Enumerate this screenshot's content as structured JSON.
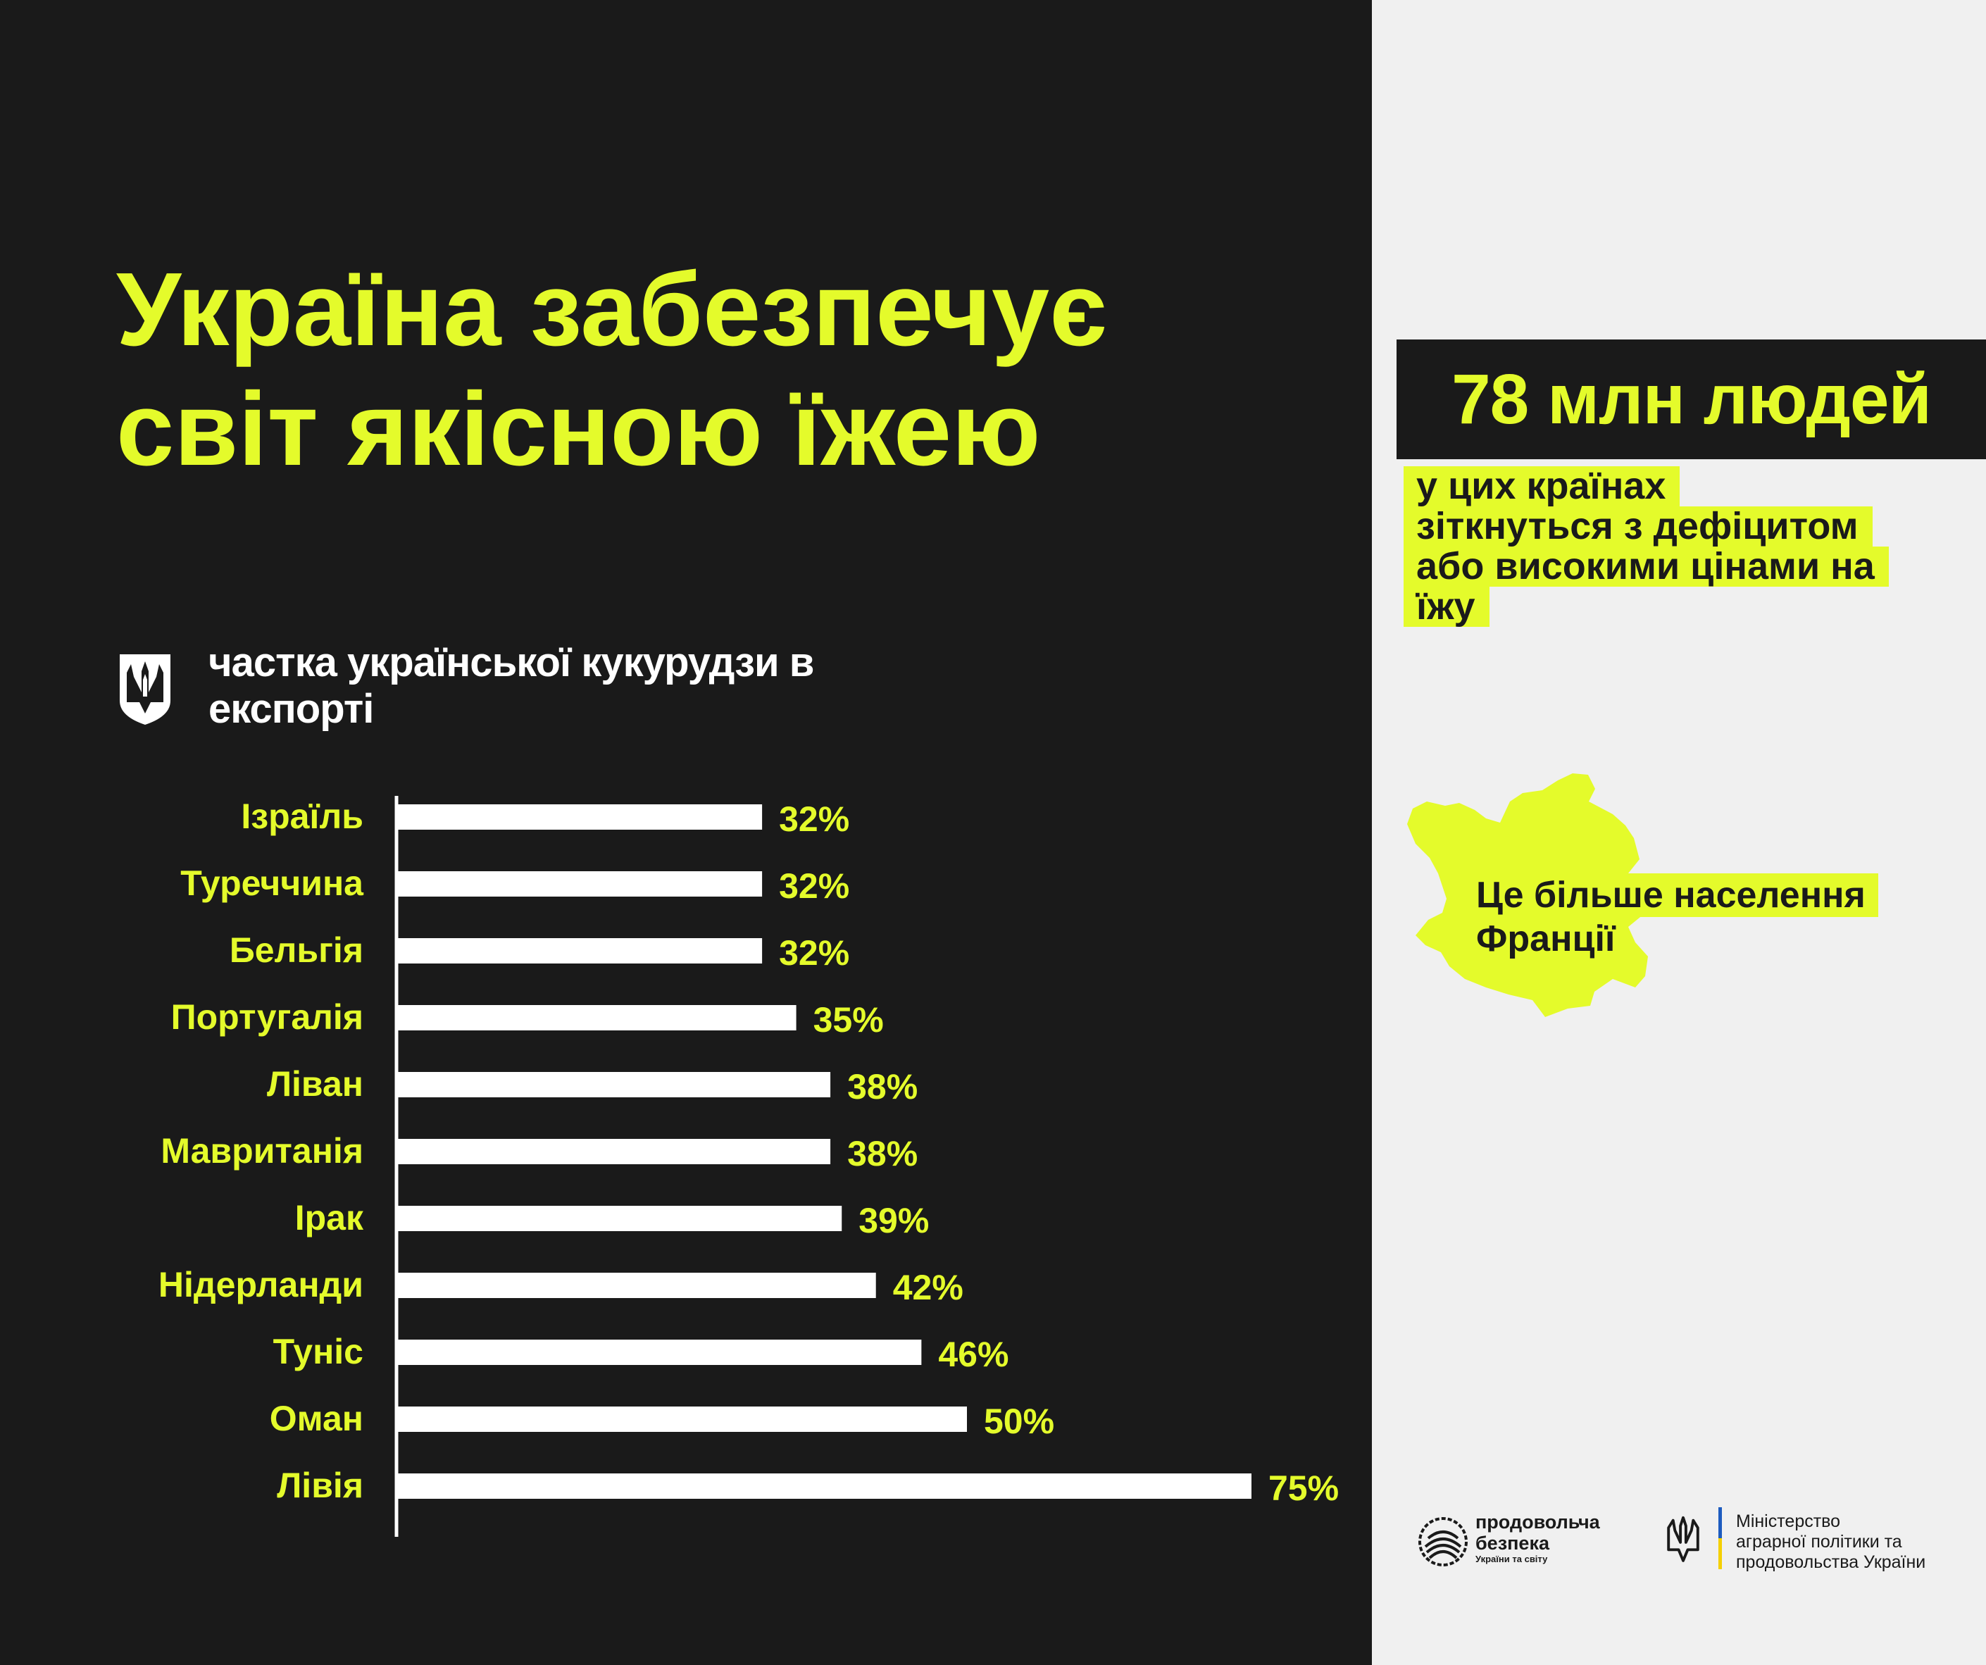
{
  "headline": {
    "line1": "Україна забезпечує",
    "line2": "світ якісною їжею"
  },
  "chart_subtitle": {
    "line1": "частка української кукурудзи в",
    "line2": "експорті"
  },
  "chart_data": {
    "type": "bar",
    "orientation": "horizontal",
    "categories": [
      "Ізраїль",
      "Туреччина",
      "Бельгія",
      "Португалія",
      "Ліван",
      "Мавританія",
      "Ірак",
      "Нідерланди",
      "Туніс",
      "Оман",
      "Лівія"
    ],
    "values": [
      32,
      32,
      32,
      35,
      38,
      38,
      39,
      42,
      46,
      50,
      75
    ],
    "value_labels": [
      "32%",
      "32%",
      "32%",
      "35%",
      "38%",
      "38%",
      "39%",
      "42%",
      "46%",
      "50%",
      "75%"
    ],
    "unit": "%",
    "xlim": [
      0,
      75
    ],
    "grid": false,
    "legend": "none",
    "bar_color": "#ffffff",
    "label_color": "#e4fb2b"
  },
  "stat": {
    "number": "78 млн людей",
    "caption_lines": [
      "у цих країнах",
      "зіткнуться з дефіцитом",
      "або високими цінами на",
      "їжу"
    ]
  },
  "map_caption": {
    "lines": [
      "Це більше населення",
      "Франції"
    ]
  },
  "logos": {
    "food_security_title": [
      "продовольча",
      "безпека"
    ],
    "food_security_sub": "України та світу",
    "ministry_lines": [
      "Міністерство",
      "аграрної політики та",
      "продовольства України"
    ]
  },
  "colors": {
    "accent": "#e4fb2b",
    "dark": "#1a1a1a",
    "light": "#f0f0f0",
    "flag_blue": "#1d5bbf",
    "flag_yellow": "#f5d000"
  },
  "icons": {
    "trident": "ukrainian-coat-of-arms-icon",
    "map": "france-map-icon",
    "food_logo": "food-security-logo"
  }
}
